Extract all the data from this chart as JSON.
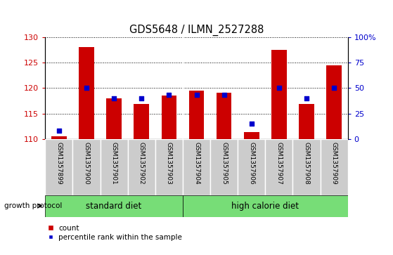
{
  "title": "GDS5648 / ILMN_2527288",
  "samples": [
    "GSM1357899",
    "GSM1357900",
    "GSM1357901",
    "GSM1357902",
    "GSM1357903",
    "GSM1357904",
    "GSM1357905",
    "GSM1357906",
    "GSM1357907",
    "GSM1357908",
    "GSM1357909"
  ],
  "count_values": [
    110.5,
    128.0,
    118.0,
    116.8,
    118.5,
    119.5,
    119.0,
    111.3,
    127.5,
    116.8,
    124.5
  ],
  "percentile_values": [
    8.0,
    50.0,
    40.0,
    40.0,
    43.0,
    43.0,
    43.0,
    15.0,
    50.0,
    40.0,
    50.0
  ],
  "count_base": 110,
  "ylim_left": [
    110,
    130
  ],
  "ylim_right": [
    0,
    100
  ],
  "yticks_left": [
    110,
    115,
    120,
    125,
    130
  ],
  "yticks_right": [
    0,
    25,
    50,
    75,
    100
  ],
  "group_standard": [
    0,
    1,
    2,
    3,
    4
  ],
  "group_highcal": [
    5,
    6,
    7,
    8,
    9,
    10
  ],
  "group_labels": [
    "standard diet",
    "high calorie diet"
  ],
  "growth_protocol_label": "growth protocol",
  "bar_color": "#cc0000",
  "dot_color": "#0000cc",
  "xtick_bg_color": "#cccccc",
  "protocol_bg_color": "#77dd77",
  "bar_width": 0.55,
  "dot_size": 18,
  "ylabel_left_color": "#cc0000",
  "ylabel_right_color": "#0000cc",
  "legend_count_label": "count",
  "legend_pct_label": "percentile rank within the sample"
}
